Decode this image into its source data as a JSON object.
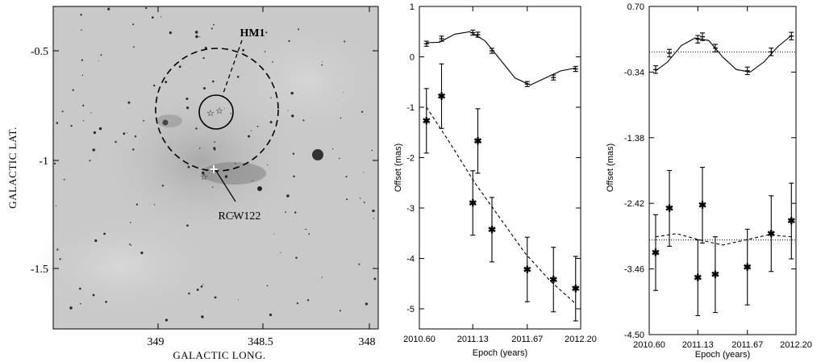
{
  "colors": {
    "sky_background": "#c9c9c9",
    "axis": "#000000",
    "marker_text": "#ffffff"
  },
  "sky_image": {
    "xlabel": "GALACTIC LONG.",
    "ylabel": "GALACTIC LAT.",
    "x_ticks": [
      "349",
      "348.5",
      "348"
    ],
    "y_ticks": [
      "-0.5",
      "-1",
      "-1.5"
    ],
    "labels": {
      "hm1": "HM1",
      "rcw122": "RCW122"
    }
  },
  "chart_data": [
    {
      "type": "scatter",
      "xlabel": "Epoch (years)",
      "ylabel": "Offset (mas)",
      "xlim": [
        2010.6,
        2012.2
      ],
      "ylim": [
        -5.4,
        1.0
      ],
      "x_ticks": [
        "2010.60",
        "2011.13",
        "2011.67",
        "2012.20"
      ],
      "y_ticks": [
        "-5",
        "-4",
        "-3",
        "-2",
        "-1",
        "0",
        "1"
      ],
      "series": [
        {
          "marker": "bar",
          "x": [
            2010.67,
            2010.82,
            2011.13,
            2011.18,
            2011.32,
            2011.67,
            2011.93,
            2012.15
          ],
          "y": [
            0.26,
            0.36,
            0.48,
            0.44,
            0.12,
            -0.54,
            -0.41,
            -0.24
          ],
          "err": [
            0.05,
            0.05,
            0.05,
            0.05,
            0.05,
            0.05,
            0.05,
            0.05
          ],
          "model": {
            "x": [
              2010.67,
              2010.8,
              2010.95,
              2011.1,
              2011.25,
              2011.4,
              2011.55,
              2011.7,
              2011.85,
              2012.0,
              2012.15
            ],
            "y": [
              0.28,
              0.29,
              0.45,
              0.5,
              0.32,
              -0.05,
              -0.42,
              -0.56,
              -0.42,
              -0.28,
              -0.22
            ]
          },
          "model_style": "solid"
        },
        {
          "marker": "star",
          "x": [
            2010.67,
            2010.82,
            2011.13,
            2011.18,
            2011.32,
            2011.67,
            2011.93,
            2012.15
          ],
          "y": [
            -1.27,
            -0.78,
            -2.9,
            -1.67,
            -3.43,
            -4.22,
            -4.42,
            -4.6
          ],
          "err": [
            0.64,
            0.64,
            0.64,
            0.64,
            0.64,
            0.64,
            0.64,
            0.64
          ],
          "model": {
            "x": [
              2010.67,
              2010.9,
              2011.15,
              2011.4,
              2011.65,
              2011.9,
              2012.15
            ],
            "y": [
              -1.0,
              -1.7,
              -2.5,
              -3.2,
              -3.9,
              -4.45,
              -4.9
            ]
          },
          "model_style": "dashed"
        }
      ]
    },
    {
      "type": "scatter",
      "xlabel": "Epoch (years)",
      "ylabel": "Offset (mas)",
      "xlim": [
        2010.6,
        2012.2
      ],
      "ylim": [
        -4.5,
        0.7
      ],
      "x_ticks": [
        "2010.60",
        "2011.13",
        "2011.67",
        "2012.20"
      ],
      "y_ticks": [
        "0.70",
        "-0.34",
        "-1.38",
        "-2.42",
        "-3.46",
        "-4.50"
      ],
      "series": [
        {
          "marker": "bar",
          "x": [
            2010.67,
            2010.82,
            2011.13,
            2011.18,
            2011.32,
            2011.67,
            2011.93,
            2012.15
          ],
          "y": [
            -0.3,
            -0.04,
            0.18,
            0.22,
            0.04,
            -0.32,
            -0.02,
            0.23
          ],
          "err": [
            0.06,
            0.06,
            0.06,
            0.06,
            0.06,
            0.06,
            0.06,
            0.06
          ],
          "model": {
            "x": [
              2010.67,
              2010.8,
              2010.95,
              2011.1,
              2011.25,
              2011.4,
              2011.55,
              2011.7,
              2011.85,
              2012.0,
              2012.15
            ],
            "y": [
              -0.32,
              -0.18,
              0.08,
              0.2,
              0.16,
              -0.1,
              -0.3,
              -0.34,
              -0.18,
              0.06,
              0.24
            ]
          },
          "model_style": "solid",
          "reference": -0.02
        },
        {
          "marker": "star",
          "x": [
            2010.67,
            2010.82,
            2011.13,
            2011.18,
            2011.32,
            2011.67,
            2011.93,
            2012.15
          ],
          "y": [
            -3.2,
            -2.5,
            -3.6,
            -2.45,
            -3.55,
            -3.43,
            -2.9,
            -2.7
          ],
          "err": [
            0.6,
            0.6,
            0.6,
            0.6,
            0.6,
            0.6,
            0.6,
            0.6
          ],
          "model": {
            "x": [
              2010.67,
              2010.9,
              2011.15,
              2011.4,
              2011.65,
              2011.9,
              2012.15
            ],
            "y": [
              -2.95,
              -2.9,
              -3.0,
              -3.08,
              -3.0,
              -2.92,
              -2.95
            ]
          },
          "model_style": "dashed",
          "reference": -3.0
        }
      ]
    }
  ]
}
